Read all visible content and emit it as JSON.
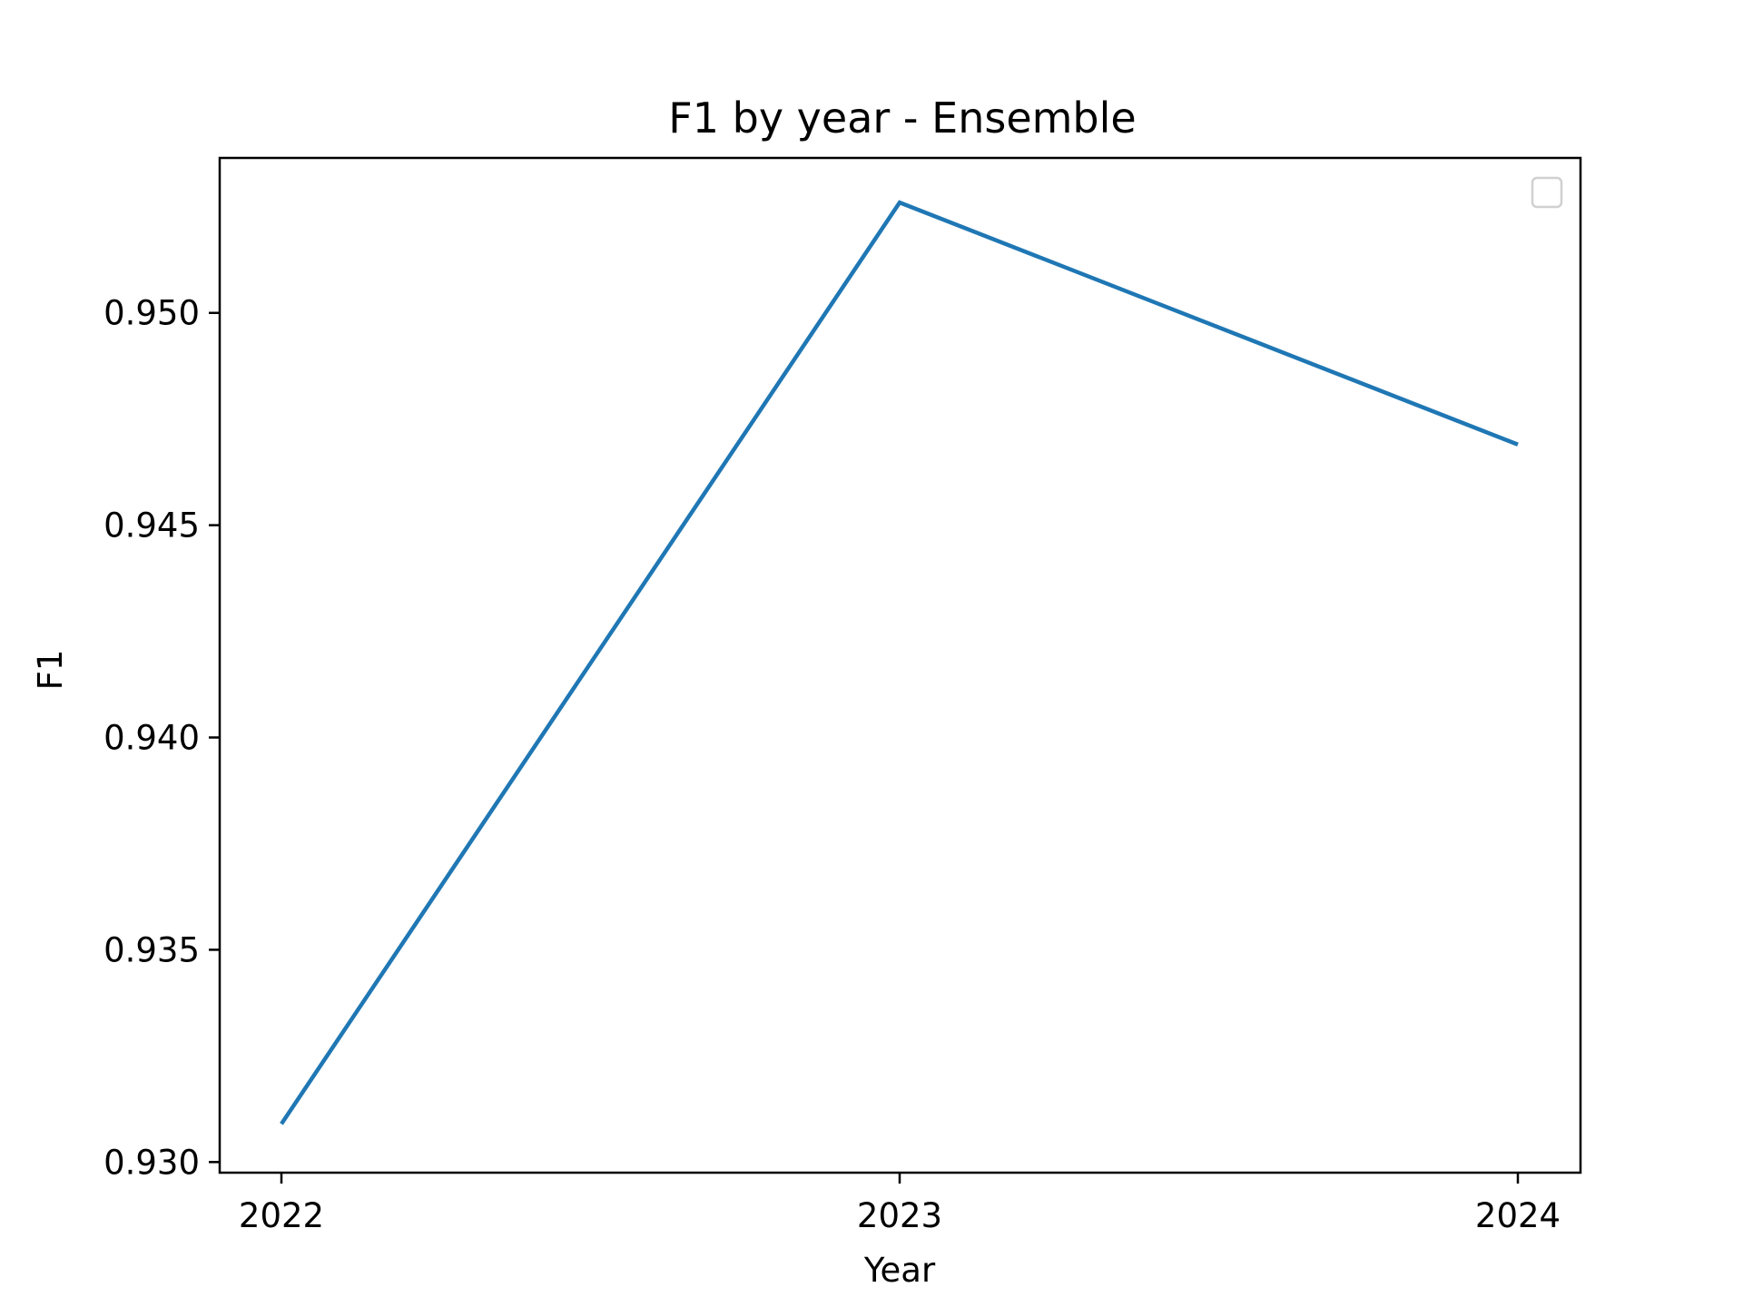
{
  "chart_data": {
    "type": "line",
    "title": "F1 by year - Ensemble",
    "xlabel": "Year",
    "ylabel": "F1",
    "categories": [
      "2022",
      "2023",
      "2024"
    ],
    "series": [
      {
        "values": [
          0.9309,
          0.9526,
          0.9469
        ],
        "color": "#1f77b4"
      }
    ],
    "yticks": [
      "0.930",
      "0.935",
      "0.940",
      "0.945",
      "0.950"
    ],
    "ylim": [
      0.92975,
      0.95365
    ],
    "grid": false,
    "legend": {
      "placement": "top-right",
      "entries": []
    }
  }
}
